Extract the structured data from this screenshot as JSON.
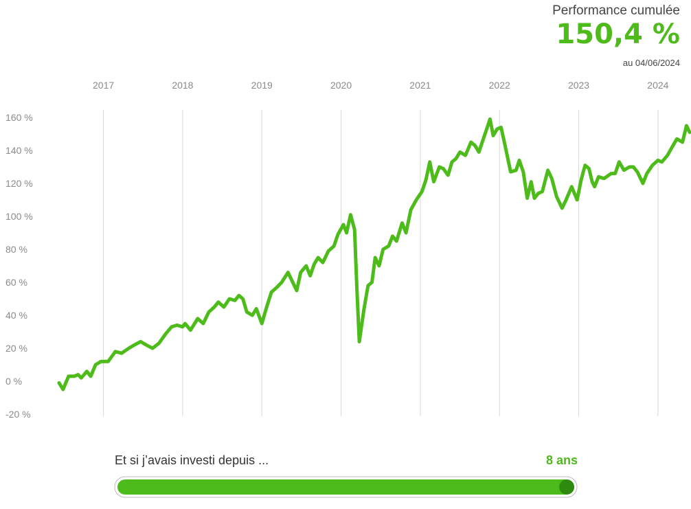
{
  "header": {
    "title": "Performance cumulée",
    "value": "150,4 %",
    "date": "au 04/06/2024"
  },
  "chart_data": {
    "type": "line",
    "x": [
      2016.44,
      2016.49,
      2016.56,
      2016.63,
      2016.68,
      2016.72,
      2016.79,
      2016.84,
      2016.9,
      2016.97,
      2017.06,
      2017.15,
      2017.23,
      2017.32,
      2017.39,
      2017.47,
      2017.54,
      2017.62,
      2017.7,
      2017.79,
      2017.86,
      2017.93,
      2018.0,
      2018.03,
      2018.1,
      2018.19,
      2018.26,
      2018.33,
      2018.4,
      2018.45,
      2018.52,
      2018.59,
      2018.66,
      2018.71,
      2018.76,
      2018.81,
      2018.88,
      2018.93,
      2019.0,
      2019.06,
      2019.12,
      2019.19,
      2019.25,
      2019.33,
      2019.39,
      2019.44,
      2019.49,
      2019.56,
      2019.61,
      2019.66,
      2019.71,
      2019.77,
      2019.84,
      2019.91,
      2019.96,
      2020.03,
      2020.07,
      2020.12,
      2020.17,
      2020.2,
      2020.23,
      2020.29,
      2020.34,
      2020.39,
      2020.43,
      2020.48,
      2020.53,
      2020.6,
      2020.65,
      2020.7,
      2020.77,
      2020.82,
      2020.88,
      2020.95,
      2021.02,
      2021.07,
      2021.12,
      2021.17,
      2021.24,
      2021.29,
      2021.35,
      2021.4,
      2021.45,
      2021.5,
      2021.57,
      2021.64,
      2021.69,
      2021.74,
      2021.81,
      2021.88,
      2021.92,
      2021.97,
      2022.02,
      2022.07,
      2022.14,
      2022.21,
      2022.25,
      2022.3,
      2022.35,
      2022.4,
      2022.44,
      2022.49,
      2022.54,
      2022.61,
      2022.66,
      2022.72,
      2022.79,
      2022.84,
      2022.91,
      2022.98,
      2023.03,
      2023.08,
      2023.13,
      2023.17,
      2023.2,
      2023.25,
      2023.32,
      2023.41,
      2023.46,
      2023.51,
      2023.57,
      2023.64,
      2023.69,
      2023.74,
      2023.81,
      2023.86,
      2023.93,
      2024.0,
      2024.05,
      2024.12,
      2024.19,
      2024.24,
      2024.31,
      2024.36,
      2024.4
    ],
    "series": [
      {
        "color": "#4dbb1a",
        "values": [
          -1,
          -5,
          3,
          3,
          4,
          2,
          6,
          3,
          10,
          12,
          12,
          18,
          17,
          20,
          22,
          24,
          22,
          20,
          23,
          29,
          33,
          34,
          33,
          35,
          31,
          38,
          35,
          42,
          45,
          48,
          45,
          50,
          49,
          52,
          50,
          42,
          40,
          44,
          35,
          45,
          54,
          57,
          60,
          66,
          60,
          55,
          66,
          70,
          64,
          71,
          75,
          72,
          79,
          82,
          89,
          95,
          90,
          101,
          92,
          56,
          24,
          44,
          58,
          60,
          75,
          70,
          80,
          82,
          88,
          85,
          96,
          90,
          104,
          110,
          115,
          122,
          133,
          121,
          130,
          129,
          125,
          133,
          135,
          139,
          137,
          145,
          143,
          139,
          149,
          159,
          149,
          153,
          154,
          143,
          127,
          128,
          134,
          127,
          111,
          121,
          111,
          114,
          115,
          128,
          123,
          112,
          105,
          110,
          118,
          110,
          122,
          131,
          129,
          121,
          118,
          124,
          123,
          126,
          126,
          133,
          128,
          130,
          130,
          127,
          120,
          126,
          131,
          134,
          133,
          137,
          143,
          147,
          145,
          155,
          151
        ]
      }
    ],
    "xlim": [
      2016.44,
      2024.4
    ],
    "xticks": [
      2017,
      2018,
      2019,
      2020,
      2021,
      2022,
      2023,
      2024
    ],
    "ylim": [
      -20,
      160
    ],
    "yticks": [
      {
        "value": -20,
        "label": "-20 %"
      },
      {
        "value": 0,
        "label": "0 %"
      },
      {
        "value": 20,
        "label": "20 %"
      },
      {
        "value": 40,
        "label": "40 %"
      },
      {
        "value": 60,
        "label": "60 %"
      },
      {
        "value": 80,
        "label": "80 %"
      },
      {
        "value": 100,
        "label": "100 %"
      },
      {
        "value": 120,
        "label": "120 %"
      },
      {
        "value": 140,
        "label": "140 %"
      },
      {
        "value": 160,
        "label": "160 %"
      }
    ],
    "grid": true
  },
  "slider": {
    "label": "Et si j’avais investi depuis ...",
    "value_label": "8 ans"
  }
}
